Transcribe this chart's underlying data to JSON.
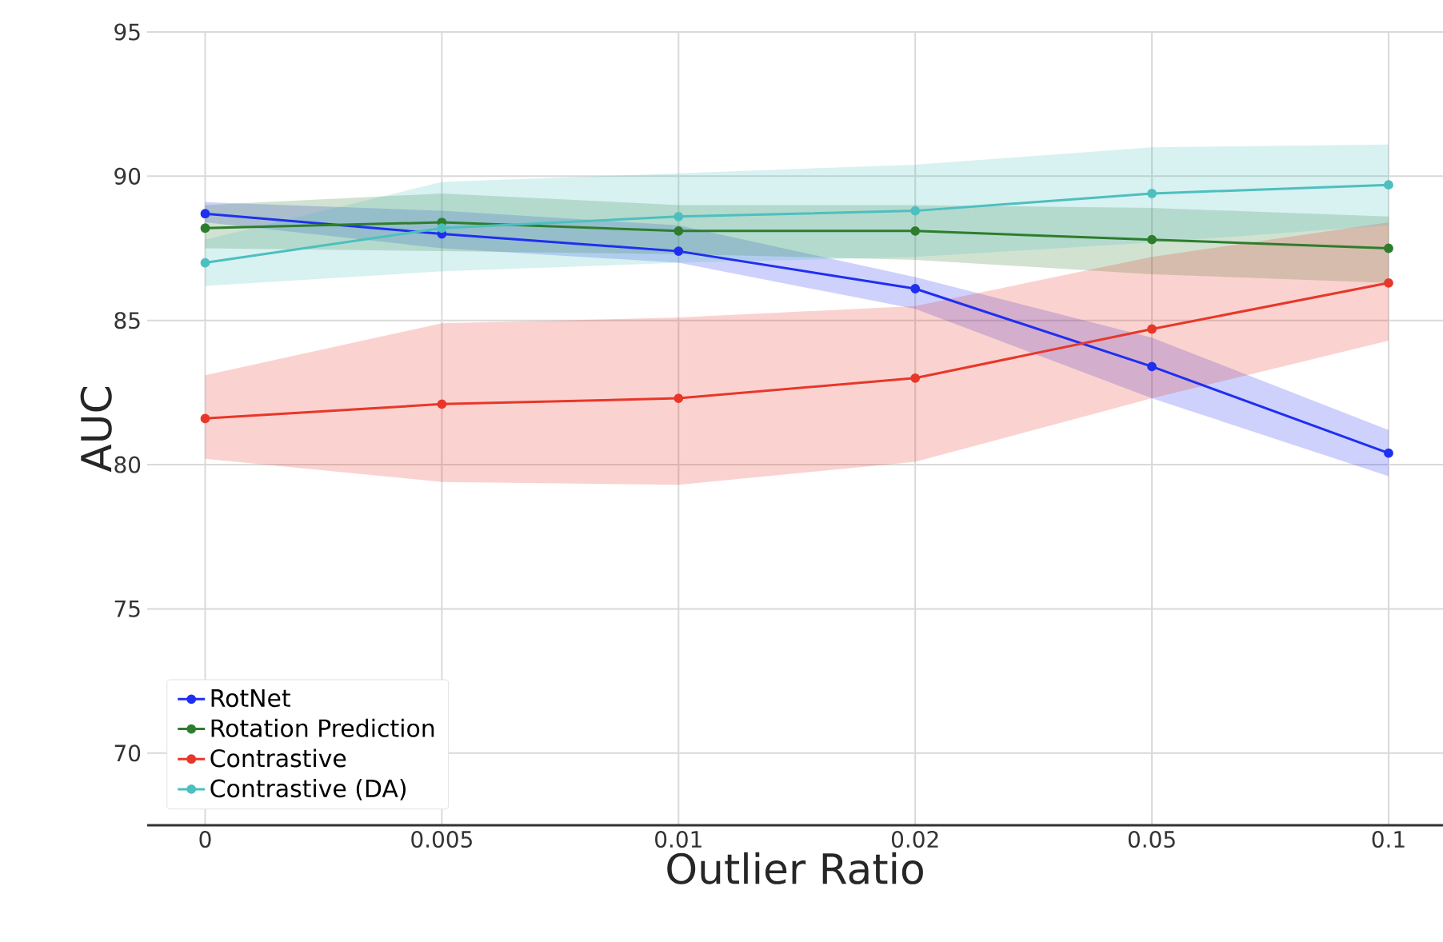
{
  "chart_data": {
    "type": "line",
    "xlabel": "Outlier Ratio",
    "ylabel": "AUC",
    "categories": [
      "0",
      "0.005",
      "0.01",
      "0.02",
      "0.05",
      "0.1"
    ],
    "ylim": [
      67.5,
      95
    ],
    "yticks": [
      70,
      75,
      80,
      85,
      90,
      95
    ],
    "grid": true,
    "legend": "bottom left",
    "marker": "circle",
    "line_style": "solid",
    "series": [
      {
        "name": "RotNet",
        "color": "#1f2ff0",
        "values": [
          88.7,
          88.0,
          87.4,
          86.1,
          83.4,
          80.4
        ],
        "lower": [
          88.4,
          87.5,
          87.0,
          85.4,
          82.3,
          79.6
        ],
        "upper": [
          89.1,
          88.8,
          88.3,
          86.5,
          84.4,
          81.2
        ]
      },
      {
        "name": "Rotation Prediction",
        "color": "#2e7d2e",
        "values": [
          88.2,
          88.4,
          88.1,
          88.1,
          87.8,
          87.5
        ],
        "lower": [
          87.5,
          87.4,
          87.3,
          87.1,
          86.6,
          86.3
        ],
        "upper": [
          89.0,
          89.4,
          89.0,
          89.0,
          88.9,
          88.6
        ]
      },
      {
        "name": "Contrastive",
        "color": "#e8372a",
        "values": [
          81.6,
          82.1,
          82.3,
          83.0,
          84.7,
          86.3
        ],
        "lower": [
          80.2,
          79.4,
          79.3,
          80.1,
          82.3,
          84.3
        ],
        "upper": [
          83.1,
          84.9,
          85.1,
          85.5,
          87.2,
          88.4
        ]
      },
      {
        "name": "Contrastive (DA)",
        "color": "#4dbfbf",
        "values": [
          87.0,
          88.2,
          88.6,
          88.8,
          89.4,
          89.7
        ],
        "lower": [
          86.2,
          86.7,
          87.0,
          87.2,
          87.7,
          88.3
        ],
        "upper": [
          87.8,
          89.8,
          90.1,
          90.4,
          91.0,
          91.1
        ]
      }
    ]
  }
}
